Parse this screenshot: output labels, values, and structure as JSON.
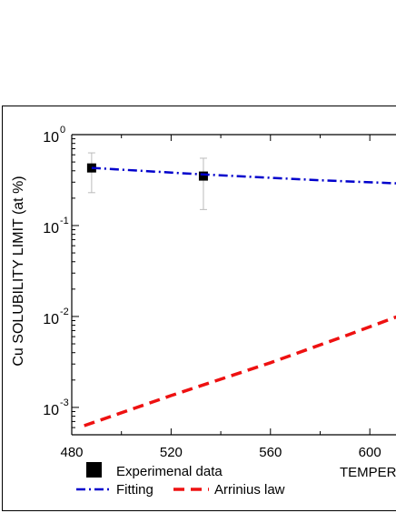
{
  "chart_data": {
    "type": "scatter",
    "ylabel": "Cu SOLUBILITY LIMIT (at %)",
    "xlabel": "TEMPER",
    "x_range": [
      480,
      612
    ],
    "y_range": [
      0.0005,
      1
    ],
    "y_scale": "log",
    "x_ticks": [
      480,
      520,
      560,
      600
    ],
    "x_tick_labels": [
      "480",
      "520",
      "560",
      "600"
    ],
    "y_ticks": [
      {
        "value": 1,
        "base": "10",
        "exp": "0"
      },
      {
        "value": 0.1,
        "base": "10",
        "exp": "-1"
      },
      {
        "value": 0.01,
        "base": "10",
        "exp": "-2"
      },
      {
        "value": 0.001,
        "base": "10",
        "exp": "-3"
      }
    ],
    "grid": false,
    "legend_position": "bottom",
    "series": [
      {
        "name": "Experimenal data",
        "kind": "scatter",
        "marker": "square",
        "color": "#000000",
        "error_color": "#bbbbbb",
        "points": [
          {
            "x": 488,
            "y": 0.43,
            "y_low": 0.23,
            "y_high": 0.63
          },
          {
            "x": 533,
            "y": 0.35,
            "y_low": 0.15,
            "y_high": 0.55
          }
        ]
      },
      {
        "name": "Fitting",
        "kind": "line",
        "style": "dash-dot",
        "color": "#0000cc",
        "points": [
          {
            "x": 488,
            "y": 0.43
          },
          {
            "x": 533,
            "y": 0.365
          },
          {
            "x": 580,
            "y": 0.315
          },
          {
            "x": 612,
            "y": 0.29
          }
        ]
      },
      {
        "name": "Arrinius law",
        "kind": "line",
        "style": "dashed",
        "color": "#ee1111",
        "points": [
          {
            "x": 485,
            "y": 0.00063
          },
          {
            "x": 520,
            "y": 0.00135
          },
          {
            "x": 560,
            "y": 0.0031
          },
          {
            "x": 590,
            "y": 0.0061
          },
          {
            "x": 612,
            "y": 0.0102
          }
        ]
      }
    ]
  }
}
